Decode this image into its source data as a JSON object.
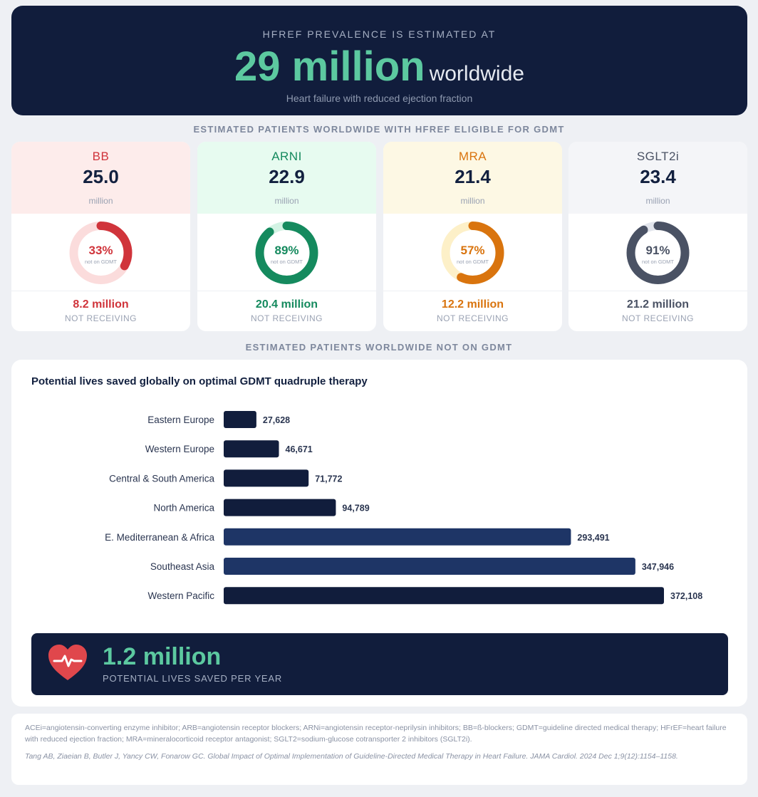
{
  "header": {
    "kicker": "HFREF PREVALENCE IS ESTIMATED AT",
    "number": "29 million",
    "suffix": "worldwide",
    "subtitle": "Heart failure with reduced ejection fraction"
  },
  "eligible_label": "ESTIMATED PATIENTS WORLDWIDE WITH HFREF ELIGIBLE FOR GDMT",
  "not_on_label": "ESTIMATED PATIENTS WORLDWIDE NOT ON GDMT",
  "cards": [
    {
      "name": "BB",
      "value": "25.0",
      "unit": "million",
      "percent": 33,
      "percent_label": "33%",
      "donut_caption": "not on GDMT",
      "amount": "8.2 million",
      "status": "NOT RECEIVING",
      "accent": "#d0343b",
      "track": "#fbdcdc",
      "tint": "#fdeceb"
    },
    {
      "name": "ARNI",
      "value": "22.9",
      "unit": "million",
      "percent": 89,
      "percent_label": "89%",
      "donut_caption": "not on GDMT",
      "amount": "20.4 million",
      "status": "NOT RECEIVING",
      "accent": "#158a5e",
      "track": "#d3f3e4",
      "tint": "#e7fbf0"
    },
    {
      "name": "MRA",
      "value": "21.4",
      "unit": "million",
      "percent": 57,
      "percent_label": "57%",
      "donut_caption": "not on GDMT",
      "amount": "12.2 million",
      "status": "NOT RECEIVING",
      "accent": "#d9740e",
      "track": "#fdf0c8",
      "tint": "#fdf8e4"
    },
    {
      "name": "SGLT2i",
      "value": "23.4",
      "unit": "million",
      "percent": 91,
      "percent_label": "91%",
      "donut_caption": "not on GDMT",
      "amount": "21.2 million",
      "status": "NOT RECEIVING",
      "accent": "#4a5264",
      "track": "#e2e5ec",
      "tint": "#f4f5f8"
    }
  ],
  "chart_data": {
    "type": "bar",
    "orientation": "horizontal",
    "title": "Potential lives saved globally on optimal GDMT quadruple therapy",
    "categories": [
      "Eastern Europe",
      "Western Europe",
      "Central & South America",
      "North America",
      "E. Mediterranean & Africa",
      "Southeast Asia",
      "Western Pacific"
    ],
    "values": [
      27628,
      46671,
      71772,
      94789,
      293491,
      347946,
      372108
    ],
    "value_labels": [
      "27,628",
      "46,671",
      "71,772",
      "94,789",
      "293,491",
      "347,946",
      "372,108"
    ],
    "bar_colors": [
      "#111d3c",
      "#111d3c",
      "#111d3c",
      "#111d3c",
      "#1e3566",
      "#1e3566",
      "#111d3c"
    ],
    "xlim": [
      0,
      372108
    ],
    "grid": false,
    "legend": "none"
  },
  "callout": {
    "icon": "heart-pulse-icon",
    "value": "1.2 million",
    "label": "POTENTIAL LIVES SAVED PER YEAR"
  },
  "footnotes": {
    "abbreviations": "ACEi=angiotensin-converting enzyme inhibitor; ARB=angiotensin receptor blockers; ARNi=angiotensin receptor-neprilysin inhibitors; BB=ß-blockers; GDMT=guideline directed medical therapy; HFrEF=heart failure with reduced ejection fraction; MRA=mineralocorticoid receptor antagonist; SGLT2=sodium-glucose cotransporter 2 inhibitors (SGLT2i).",
    "citation": "Tang AB, Ziaeian B, Butler J, Yancy CW, Fonarow GC. Global Impact of Optimal Implementation of Guideline-Directed Medical Therapy in Heart Failure. JAMA Cardiol. 2024 Dec 1;9(12):1154–1158."
  }
}
